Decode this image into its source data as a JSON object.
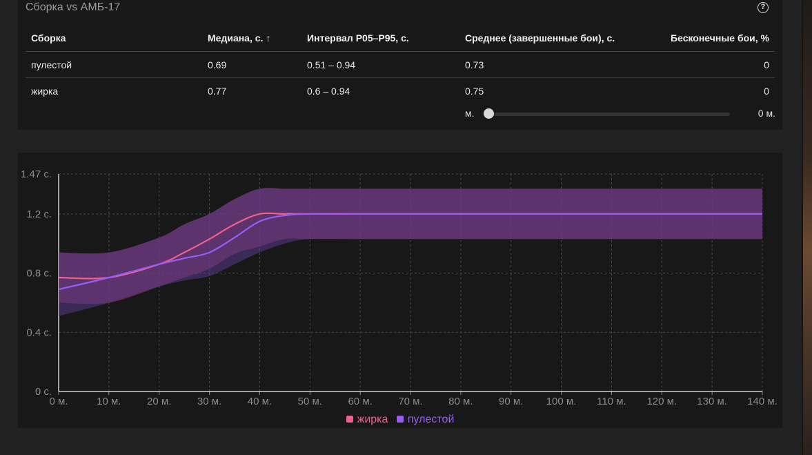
{
  "table_card": {
    "title": "Сборка vs АМБ-17",
    "help_icon": "question-circle-icon",
    "headers": {
      "build": "Сборка",
      "median": "Медиана, с. ↑",
      "interval": "Интервал P05–P95, с.",
      "mean": "Среднее (завершенные бои), с.",
      "infinite": "Бесконечные бои, %"
    },
    "rows": [
      {
        "build": "пулестой",
        "median": "0.69",
        "interval": "0.51 – 0.94",
        "mean": "0.73",
        "infinite": "0"
      },
      {
        "build": "жирка",
        "median": "0.77",
        "interval": "0.6 – 0.94",
        "mean": "0.75",
        "infinite": "0"
      }
    ],
    "slider": {
      "min_label": "м.",
      "value_label": "0 м.",
      "value": 0
    }
  },
  "chart_data": {
    "type": "line",
    "title": "",
    "xlabel": "",
    "ylabel": "",
    "x_tick_labels": [
      "0 м.",
      "10 м.",
      "20 м.",
      "30 м.",
      "40 м.",
      "50 м.",
      "60 м.",
      "70 м.",
      "80 м.",
      "90 м.",
      "100 м.",
      "110 м.",
      "120 м.",
      "130 м.",
      "140 м."
    ],
    "y_tick_labels": [
      "1.47 с.",
      "1.2 с.",
      "0.8 с.",
      "0.4 с.",
      "0 с."
    ],
    "y_ticks": [
      1.47,
      1.2,
      0.8,
      0.4,
      0
    ],
    "xlim": [
      0,
      140
    ],
    "ylim": [
      0,
      1.47
    ],
    "grid": true,
    "legend_position": "bottom-center",
    "x": [
      0,
      10,
      20,
      25,
      30,
      35,
      40,
      45,
      50,
      60,
      70,
      80,
      90,
      100,
      110,
      120,
      130,
      140
    ],
    "series": [
      {
        "name": "жирка",
        "color": "#f0608a",
        "values": [
          0.77,
          0.77,
          0.86,
          0.94,
          1.03,
          1.13,
          1.2,
          1.2,
          1.2,
          1.2,
          1.2,
          1.2,
          1.2,
          1.2,
          1.2,
          1.2,
          1.2,
          1.2
        ],
        "band_low": [
          0.6,
          0.6,
          0.71,
          0.77,
          0.83,
          0.93,
          0.98,
          1.03,
          1.03,
          1.03,
          1.03,
          1.03,
          1.03,
          1.03,
          1.03,
          1.03,
          1.03,
          1.03
        ],
        "band_high": [
          0.94,
          0.94,
          1.04,
          1.13,
          1.2,
          1.3,
          1.37,
          1.37,
          1.37,
          1.37,
          1.37,
          1.37,
          1.37,
          1.37,
          1.37,
          1.37,
          1.37,
          1.37
        ]
      },
      {
        "name": "пулестой",
        "color": "#9a5cf5",
        "values": [
          0.69,
          0.77,
          0.86,
          0.9,
          0.94,
          1.04,
          1.15,
          1.19,
          1.2,
          1.2,
          1.2,
          1.2,
          1.2,
          1.2,
          1.2,
          1.2,
          1.2,
          1.2
        ],
        "band_low": [
          0.51,
          0.6,
          0.71,
          0.75,
          0.78,
          0.86,
          0.94,
          1.0,
          1.03,
          1.03,
          1.03,
          1.03,
          1.03,
          1.03,
          1.03,
          1.03,
          1.03,
          1.03
        ],
        "band_high": [
          0.94,
          0.94,
          1.04,
          1.13,
          1.2,
          1.3,
          1.37,
          1.37,
          1.37,
          1.37,
          1.37,
          1.37,
          1.37,
          1.37,
          1.37,
          1.37,
          1.37,
          1.37
        ]
      }
    ]
  }
}
